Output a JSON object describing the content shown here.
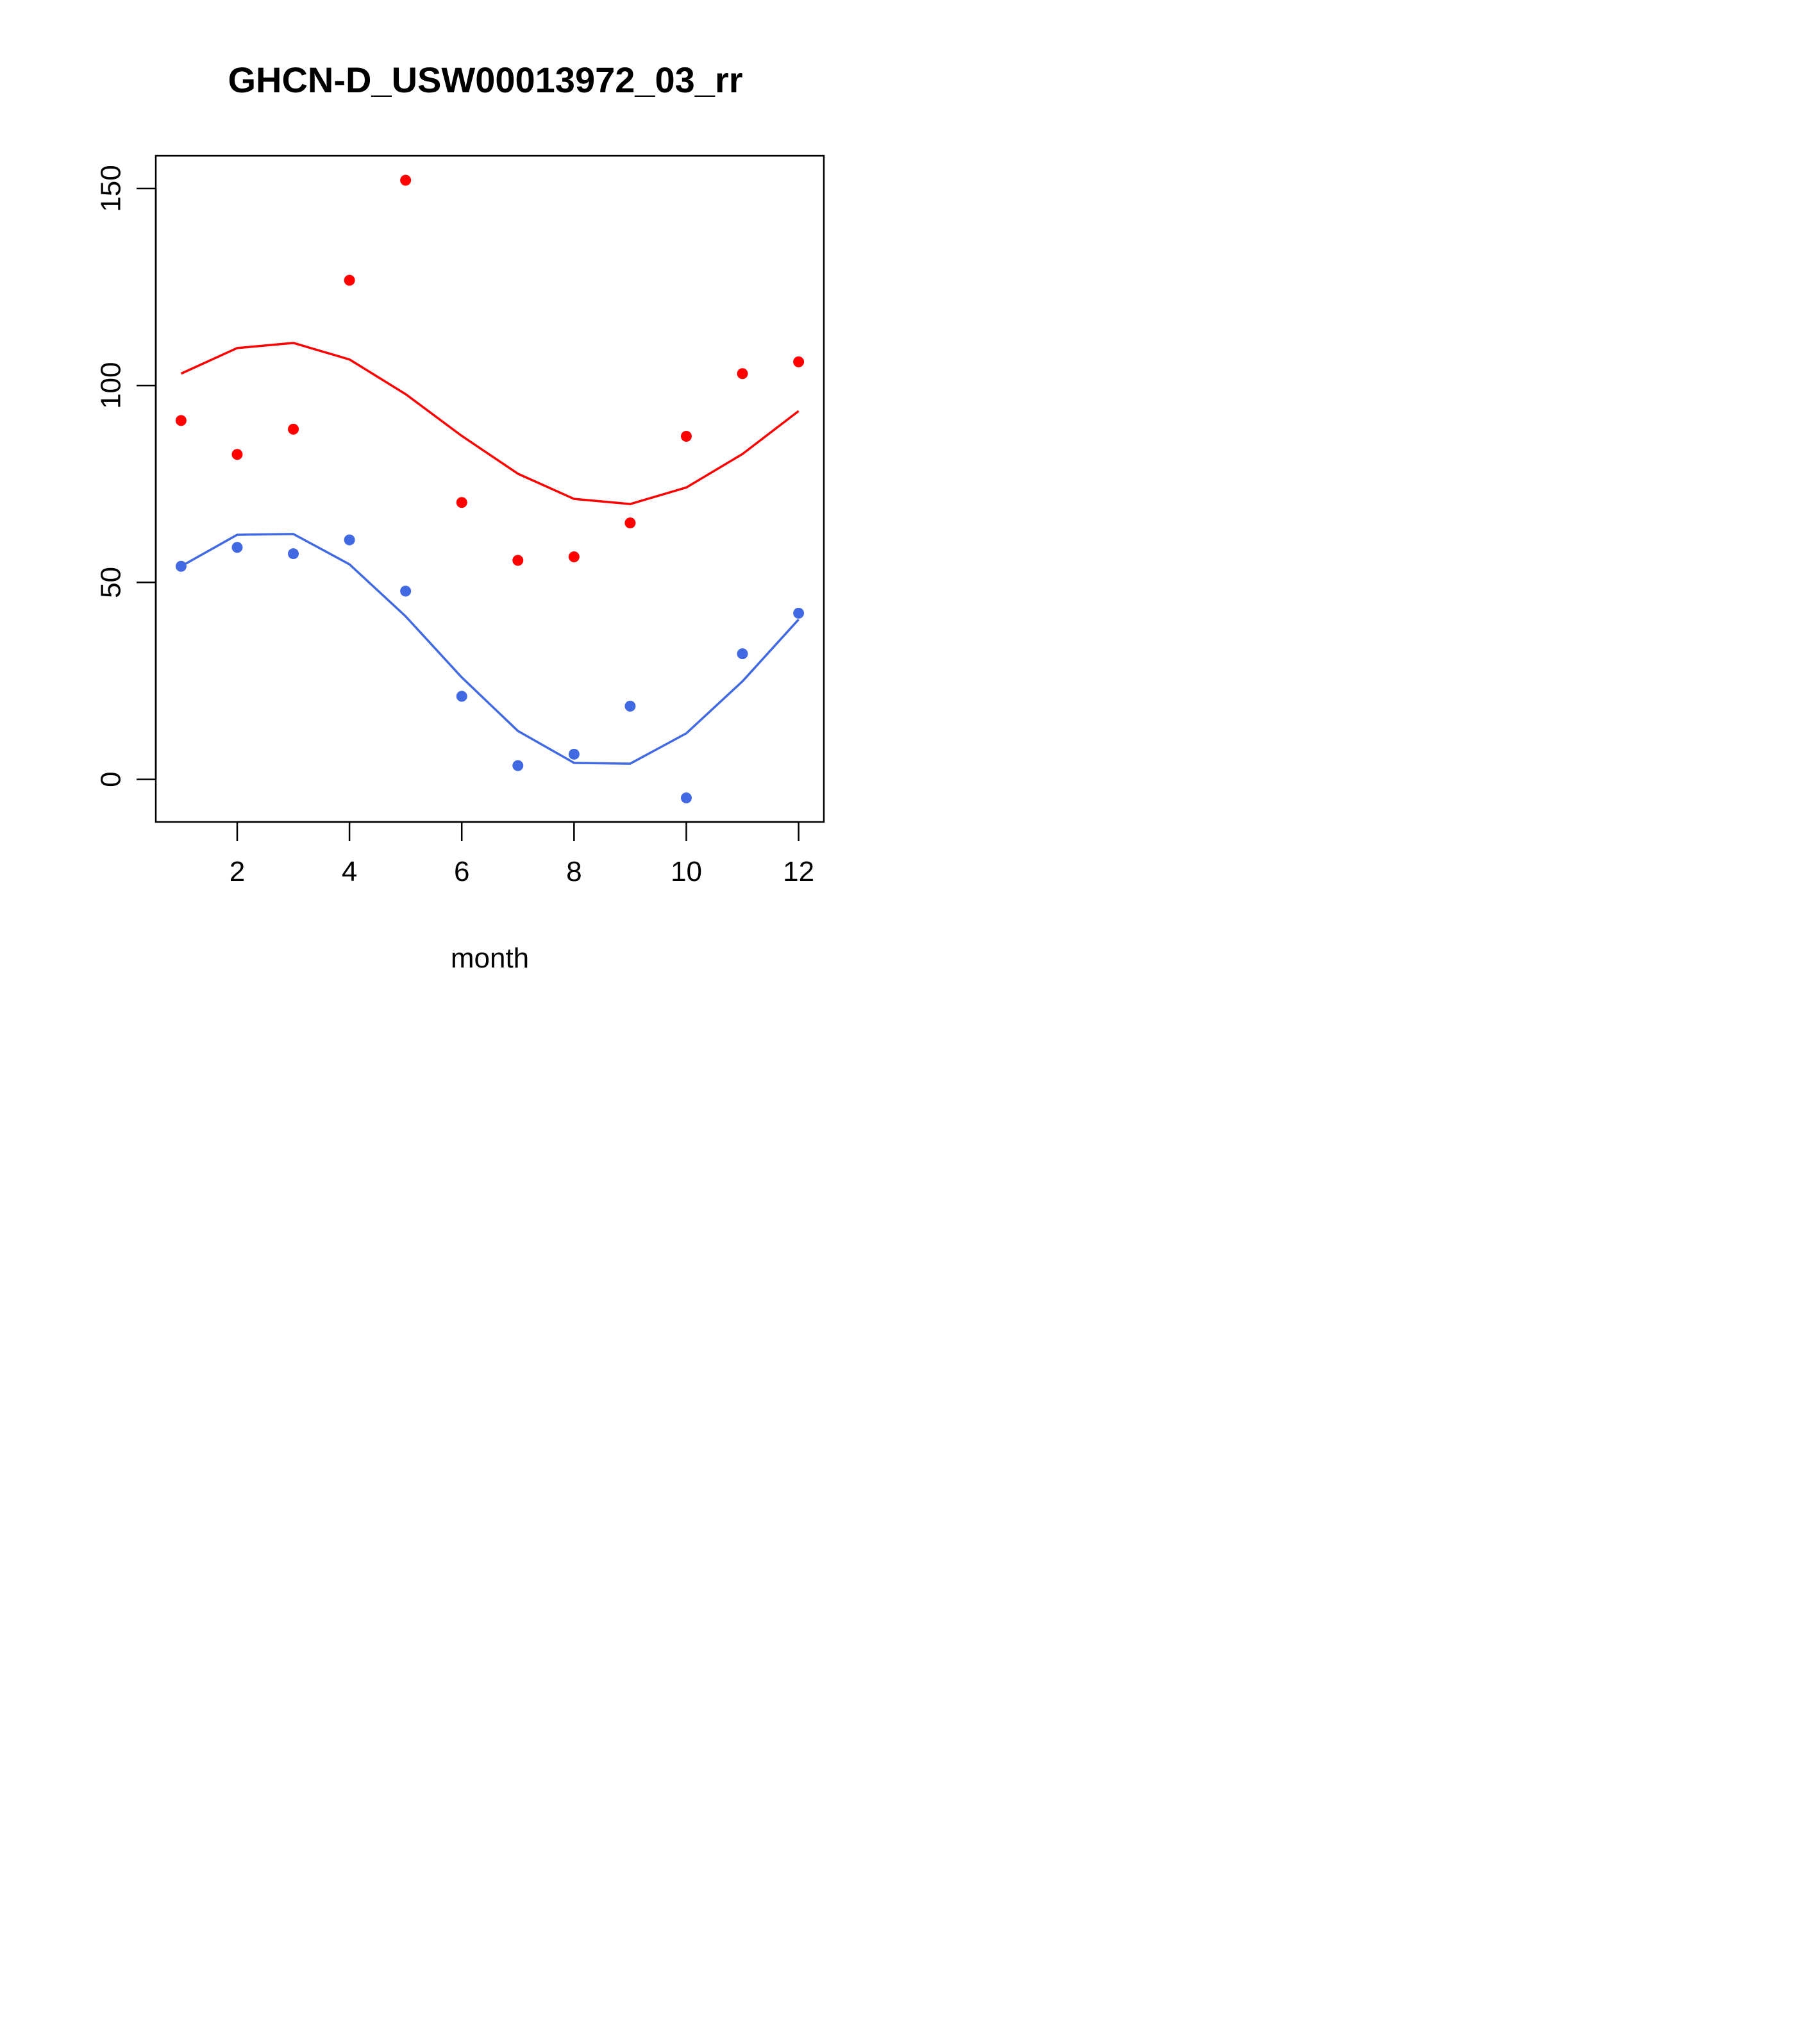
{
  "chart_data": {
    "type": "scatter",
    "title": "GHCN-D_USW00013972_03_rr",
    "xlabel": "month",
    "ylabel": "",
    "xlim": [
      0.55,
      12.45
    ],
    "ylim": [
      -10.8,
      158.3
    ],
    "x_ticks": [
      2,
      4,
      6,
      8,
      10,
      12
    ],
    "y_ticks": [
      0,
      50,
      100,
      150
    ],
    "grid": false,
    "series": [
      {
        "color": "#ff0000",
        "x": [
          1,
          2,
          3,
          4,
          5,
          6,
          7,
          8,
          9,
          10,
          11,
          12
        ],
        "points": [
          91.1,
          82.5,
          88.9,
          126.7,
          152.1,
          70.3,
          55.6,
          56.5,
          65.1,
          87.1,
          103.0,
          106.0
        ],
        "fit": [
          103.0,
          109.5,
          110.8,
          106.6,
          97.8,
          87.2,
          77.6,
          71.2,
          69.9,
          74.1,
          82.6,
          93.5
        ]
      },
      {
        "color": "#4169e1",
        "x": [
          1,
          2,
          3,
          4,
          5,
          6,
          7,
          8,
          9,
          10,
          11,
          12
        ],
        "points": [
          54.1,
          58.9,
          57.3,
          60.8,
          47.8,
          21.1,
          3.5,
          6.4,
          18.6,
          -4.7,
          31.9,
          42.2
        ],
        "fit": [
          54.1,
          62.1,
          62.3,
          54.6,
          41.4,
          25.9,
          12.3,
          4.2,
          4.0,
          11.7,
          24.9,
          40.6
        ]
      }
    ]
  }
}
